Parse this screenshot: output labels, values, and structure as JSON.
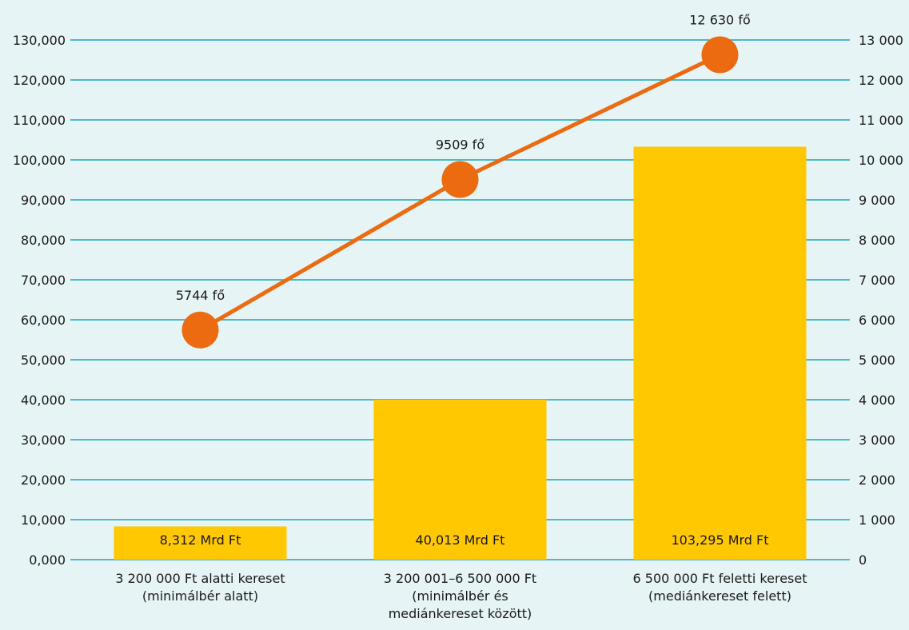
{
  "chart_data": {
    "type": "bar",
    "categories": [
      [
        "3 200 000 Ft alatti kereset",
        "(minimálbér alatt)"
      ],
      [
        "3 200 001–6 500 000 Ft",
        "(minimálbér és",
        "mediánkereset között)"
      ],
      [
        "6 500 000 Ft feletti kereset",
        "(mediánkereset felett)"
      ]
    ],
    "bars": {
      "values": [
        8.312,
        40.013,
        103.295
      ],
      "labels": [
        "8,312 Mrd Ft",
        "40,013 Mrd Ft",
        "103,295 Mrd Ft"
      ],
      "color": "#ffc800"
    },
    "line": {
      "values": [
        5744,
        9509,
        12630
      ],
      "labels": [
        "5744 fő",
        "9509 fő",
        "12 630 fő"
      ],
      "color": "#ec6a10"
    },
    "y_left": {
      "ylim": [
        0,
        130
      ],
      "ticks": [
        "0,000",
        "10,000",
        "20,000",
        "30,000",
        "40,000",
        "50,000",
        "60,000",
        "70,000",
        "80,000",
        "90,000",
        "100,000",
        "110,000",
        "120,000",
        "130,000"
      ]
    },
    "y_right": {
      "ylim": [
        0,
        13000
      ],
      "ticks": [
        "0",
        "1 000",
        "2 000",
        "3 000",
        "4 000",
        "5 000",
        "6 000",
        "7 000",
        "8 000",
        "9 000",
        "10 000",
        "11 000",
        "12 000",
        "13 000"
      ]
    },
    "grid": true,
    "grid_color": "#1aa7b5"
  }
}
